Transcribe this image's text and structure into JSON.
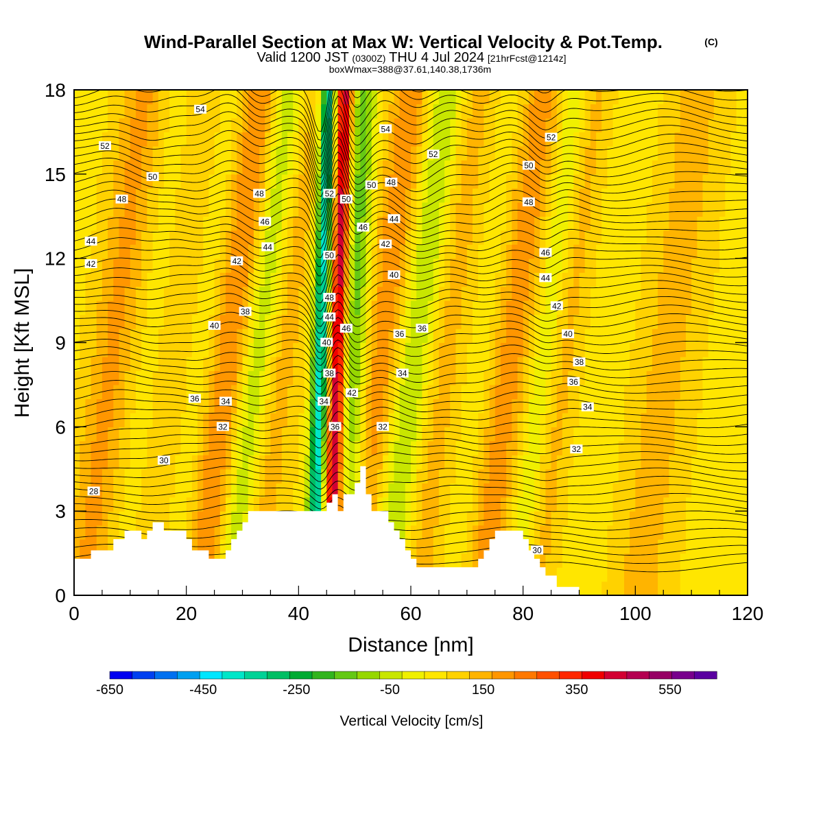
{
  "header": {
    "title": "Wind-Parallel Section at Max W: Vertical Velocity & Pot.Temp.",
    "copyright": "(C)",
    "valid_prefix": "Valid 1200 JST",
    "utc": "(0300Z)",
    "valid_date": "THU 4 Jul 2024",
    "forecast": "[21hrFcst@1214z]",
    "boxw": "boxWmax=388@37.61,140.38,1736m"
  },
  "chart_data": {
    "type": "heatmap",
    "xlabel": "Distance [nm]",
    "ylabel": "Height [Kft MSL]",
    "xlim": [
      0,
      120
    ],
    "ylim": [
      0,
      18
    ],
    "xticks": [
      "0",
      "20",
      "40",
      "60",
      "80",
      "100",
      "120"
    ],
    "yticks": [
      "0",
      "3",
      "6",
      "9",
      "12",
      "15",
      "18"
    ],
    "colorbar": {
      "title": "Vertical Velocity [cm/s]",
      "labels": [
        "-650",
        "-450",
        "-250",
        "-50",
        "150",
        "350",
        "550"
      ],
      "range": [
        -650,
        650
      ],
      "colors": [
        "#0000f0",
        "#0040f0",
        "#0070f0",
        "#00a0f0",
        "#00e6ff",
        "#00e6c8",
        "#00d296",
        "#00be64",
        "#00aa32",
        "#32b41e",
        "#64c814",
        "#96d700",
        "#c8e600",
        "#f0f000",
        "#ffe600",
        "#ffd200",
        "#ffb400",
        "#ff9600",
        "#ff7800",
        "#ff5000",
        "#ff2800",
        "#f00000",
        "#d20032",
        "#b40050",
        "#960064",
        "#78008c",
        "#5a00a0"
      ]
    },
    "terrain_kft": [
      [
        0,
        1.3
      ],
      [
        3,
        1.3
      ],
      [
        3,
        1.6
      ],
      [
        7,
        1.6
      ],
      [
        7,
        2.0
      ],
      [
        9,
        2.0
      ],
      [
        9,
        2.3
      ],
      [
        12,
        2.3
      ],
      [
        12,
        2.0
      ],
      [
        13,
        2.0
      ],
      [
        13,
        2.3
      ],
      [
        14,
        2.3
      ],
      [
        14,
        2.6
      ],
      [
        16,
        2.6
      ],
      [
        16,
        2.3
      ],
      [
        20,
        2.3
      ],
      [
        20,
        2.0
      ],
      [
        21,
        2.0
      ],
      [
        21,
        1.6
      ],
      [
        24,
        1.6
      ],
      [
        24,
        1.3
      ],
      [
        27,
        1.3
      ],
      [
        27,
        1.6
      ],
      [
        28,
        1.6
      ],
      [
        28,
        2.0
      ],
      [
        29,
        2.0
      ],
      [
        29,
        2.3
      ],
      [
        30,
        2.3
      ],
      [
        30,
        2.6
      ],
      [
        31,
        2.6
      ],
      [
        31,
        3.0
      ],
      [
        45,
        3.0
      ],
      [
        45,
        3.3
      ],
      [
        46,
        3.3
      ],
      [
        46,
        3.6
      ],
      [
        47,
        3.6
      ],
      [
        47,
        3.0
      ],
      [
        48,
        3.0
      ],
      [
        48,
        3.6
      ],
      [
        50,
        3.6
      ],
      [
        50,
        4.0
      ],
      [
        51,
        4.0
      ],
      [
        51,
        4.3
      ],
      [
        51,
        4.6
      ],
      [
        52,
        4.6
      ],
      [
        52,
        3.6
      ],
      [
        53,
        3.6
      ],
      [
        53,
        3.0
      ],
      [
        56,
        3.0
      ],
      [
        56,
        2.6
      ],
      [
        57,
        2.6
      ],
      [
        57,
        2.3
      ],
      [
        58,
        2.3
      ],
      [
        58,
        2.0
      ],
      [
        59,
        2.0
      ],
      [
        59,
        1.6
      ],
      [
        60,
        1.6
      ],
      [
        60,
        1.3
      ],
      [
        61,
        1.3
      ],
      [
        61,
        1.0
      ],
      [
        72,
        1.0
      ],
      [
        72,
        1.3
      ],
      [
        73,
        1.3
      ],
      [
        73,
        1.6
      ],
      [
        74,
        1.6
      ],
      [
        74,
        2.0
      ],
      [
        75,
        2.0
      ],
      [
        75,
        2.3
      ],
      [
        80,
        2.3
      ],
      [
        80,
        2.0
      ],
      [
        81,
        2.0
      ],
      [
        81,
        1.6
      ],
      [
        82,
        1.6
      ],
      [
        82,
        1.3
      ],
      [
        83,
        1.3
      ],
      [
        83,
        1.0
      ],
      [
        84,
        1.0
      ],
      [
        84,
        0.7
      ],
      [
        86,
        0.7
      ],
      [
        86,
        0.3
      ],
      [
        90,
        0.3
      ],
      [
        90,
        0.0
      ],
      [
        120,
        0.0
      ]
    ],
    "w_bands": [
      {
        "x": 7,
        "w": 120,
        "width": 4
      },
      {
        "x": 14,
        "w": -40,
        "width": 3
      },
      {
        "x": 18,
        "w": 60,
        "width": 5
      },
      {
        "x": 23,
        "w": -60,
        "width": 3
      },
      {
        "x": 28,
        "w": 160,
        "width": 4
      },
      {
        "x": 33,
        "w": -170,
        "width": 3
      },
      {
        "x": 37,
        "w": 90,
        "width": 4
      },
      {
        "x": 44,
        "w": -450,
        "width": 1.5
      },
      {
        "x": 47,
        "w": 420,
        "width": 1.6
      },
      {
        "x": 50,
        "w": -220,
        "width": 2.5
      },
      {
        "x": 55,
        "w": 150,
        "width": 4
      },
      {
        "x": 61,
        "w": -160,
        "width": 3.5
      },
      {
        "x": 66,
        "w": 90,
        "width": 4
      },
      {
        "x": 73,
        "w": -30,
        "width": 3
      },
      {
        "x": 78,
        "w": 140,
        "width": 3.5
      },
      {
        "x": 84,
        "w": -90,
        "width": 2
      },
      {
        "x": 88,
        "w": 70,
        "width": 3
      },
      {
        "x": 96,
        "w": -20,
        "width": 5
      },
      {
        "x": 106,
        "w": 80,
        "width": 6
      },
      {
        "x": 114,
        "w": -10,
        "width": 5
      }
    ],
    "contour_labels": [
      {
        "x": 22.5,
        "y": 17.3,
        "text": "54"
      },
      {
        "x": 55.5,
        "y": 16.6,
        "text": "54"
      },
      {
        "x": 5.5,
        "y": 16.0,
        "text": "52"
      },
      {
        "x": 64,
        "y": 15.7,
        "text": "52"
      },
      {
        "x": 85,
        "y": 16.3,
        "text": "52"
      },
      {
        "x": 14,
        "y": 14.9,
        "text": "50"
      },
      {
        "x": 53,
        "y": 14.6,
        "text": "50"
      },
      {
        "x": 81,
        "y": 15.3,
        "text": "50"
      },
      {
        "x": 45.5,
        "y": 14.3,
        "text": "52"
      },
      {
        "x": 48.5,
        "y": 14.1,
        "text": "50"
      },
      {
        "x": 8.5,
        "y": 14.1,
        "text": "48"
      },
      {
        "x": 33,
        "y": 14.3,
        "text": "48"
      },
      {
        "x": 56.5,
        "y": 14.7,
        "text": "48"
      },
      {
        "x": 81,
        "y": 14.0,
        "text": "48"
      },
      {
        "x": 34,
        "y": 13.3,
        "text": "46"
      },
      {
        "x": 51.5,
        "y": 13.1,
        "text": "46"
      },
      {
        "x": 84,
        "y": 12.2,
        "text": "46"
      },
      {
        "x": 3,
        "y": 12.6,
        "text": "44"
      },
      {
        "x": 34.5,
        "y": 12.4,
        "text": "44"
      },
      {
        "x": 57,
        "y": 13.4,
        "text": "44"
      },
      {
        "x": 84,
        "y": 11.3,
        "text": "44"
      },
      {
        "x": 3,
        "y": 11.8,
        "text": "42"
      },
      {
        "x": 29,
        "y": 11.9,
        "text": "42"
      },
      {
        "x": 55.5,
        "y": 12.5,
        "text": "42"
      },
      {
        "x": 86,
        "y": 10.3,
        "text": "42"
      },
      {
        "x": 45.5,
        "y": 12.1,
        "text": "50"
      },
      {
        "x": 45.5,
        "y": 10.6,
        "text": "48"
      },
      {
        "x": 45.5,
        "y": 9.9,
        "text": "44"
      },
      {
        "x": 48.5,
        "y": 9.5,
        "text": "46"
      },
      {
        "x": 25,
        "y": 9.6,
        "text": "40"
      },
      {
        "x": 57,
        "y": 11.4,
        "text": "40"
      },
      {
        "x": 88,
        "y": 9.3,
        "text": "40"
      },
      {
        "x": 30.5,
        "y": 10.1,
        "text": "38"
      },
      {
        "x": 45,
        "y": 9.0,
        "text": "40"
      },
      {
        "x": 58,
        "y": 9.3,
        "text": "36"
      },
      {
        "x": 62,
        "y": 9.5,
        "text": "36"
      },
      {
        "x": 90,
        "y": 8.3,
        "text": "38"
      },
      {
        "x": 45.5,
        "y": 7.9,
        "text": "38"
      },
      {
        "x": 58.5,
        "y": 7.9,
        "text": "34"
      },
      {
        "x": 89,
        "y": 7.6,
        "text": "36"
      },
      {
        "x": 21.5,
        "y": 7.0,
        "text": "36"
      },
      {
        "x": 27,
        "y": 6.9,
        "text": "34"
      },
      {
        "x": 44.5,
        "y": 6.9,
        "text": "34"
      },
      {
        "x": 49.5,
        "y": 7.2,
        "text": "42"
      },
      {
        "x": 91.5,
        "y": 6.7,
        "text": "34"
      },
      {
        "x": 26.5,
        "y": 6.0,
        "text": "32"
      },
      {
        "x": 46.5,
        "y": 6.0,
        "text": "36"
      },
      {
        "x": 55,
        "y": 6.0,
        "text": "32"
      },
      {
        "x": 89.5,
        "y": 5.2,
        "text": "32"
      },
      {
        "x": 16,
        "y": 4.8,
        "text": "30"
      },
      {
        "x": 82.5,
        "y": 1.6,
        "text": "30"
      },
      {
        "x": 3.5,
        "y": 3.7,
        "text": "28"
      }
    ]
  }
}
